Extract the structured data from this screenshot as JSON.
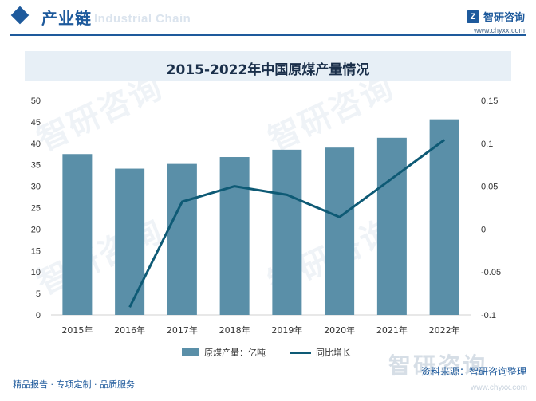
{
  "header": {
    "section_title": "产业链",
    "ghost_text": "Industrial Chain",
    "brand_name": "智研咨询",
    "brand_url": "www.chyxx.com"
  },
  "chart_data": {
    "type": "bar",
    "title": "2015-2022年中国原煤产量情况",
    "categories": [
      "2015年",
      "2016年",
      "2017年",
      "2018年",
      "2019年",
      "2020年",
      "2021年",
      "2022年"
    ],
    "series": [
      {
        "name": "原煤产量：亿吨",
        "kind": "bar",
        "axis": "left",
        "values": [
          37.5,
          34.1,
          35.2,
          36.8,
          38.5,
          39.0,
          41.3,
          45.6
        ]
      },
      {
        "name": "同比增长",
        "kind": "line",
        "axis": "right",
        "values": [
          null,
          -0.091,
          0.032,
          0.05,
          0.04,
          0.014,
          0.059,
          0.104
        ]
      }
    ],
    "ylim": [
      0,
      50
    ],
    "y_ticks": [
      "0",
      "5",
      "10",
      "15",
      "20",
      "25",
      "30",
      "35",
      "40",
      "45",
      "50"
    ],
    "y2lim": [
      -0.1,
      0.15
    ],
    "y2_ticks": [
      "-0.1",
      "-0.05",
      "0",
      "0.05",
      "0.1",
      "0.15"
    ],
    "grid": false,
    "legend_position": "bottom",
    "bar_color": "#5a8fa8",
    "line_color": "#0e5a75"
  },
  "footer": {
    "tagline": "精品报告 · 专项定制 · 品质服务",
    "source": "资料来源：智研咨询整理",
    "logo_text": "智研咨询",
    "logo_url": "www.chyxx.com"
  },
  "watermark_text": "智研咨询"
}
